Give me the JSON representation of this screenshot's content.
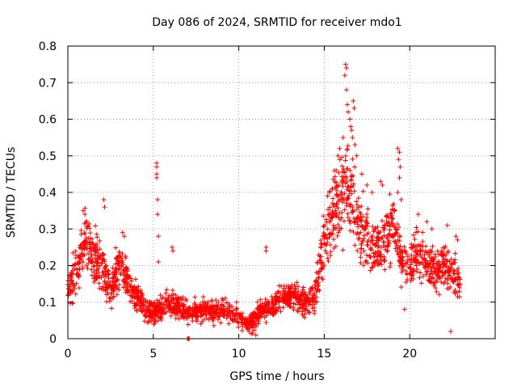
{
  "chart_data": {
    "type": "scatter",
    "title": "Day 086 of 2024, SRMTID for receiver mdo1",
    "xlabel": "GPS time / hours",
    "ylabel": "SRMTID / TECUs",
    "xlim": [
      0,
      25
    ],
    "ylim": [
      0,
      0.8
    ],
    "xticks": [
      0,
      5,
      10,
      15,
      20
    ],
    "xtick_labels": [
      "0",
      "5",
      "10",
      "15",
      "20"
    ],
    "yticks": [
      0,
      0.1,
      0.2,
      0.3,
      0.4,
      0.5,
      0.6,
      0.7,
      0.8
    ],
    "ytick_labels": [
      "0",
      "0.1",
      "0.2",
      "0.3",
      "0.4",
      "0.5",
      "0.6",
      "0.7",
      "0.8"
    ],
    "grid": true,
    "marker": "plus",
    "series_color": "#ff0000",
    "profile": {
      "x": [
        0,
        0.5,
        1,
        1.5,
        2,
        2.5,
        3,
        3.5,
        4,
        4.5,
        5,
        5.5,
        6,
        6.5,
        7,
        7.5,
        8,
        8.5,
        9,
        9.5,
        10,
        10.5,
        11,
        11.5,
        12,
        12.5,
        13,
        13.5,
        14,
        14.5,
        15,
        15.5,
        16,
        16.5,
        17,
        17.5,
        18,
        18.5,
        19,
        19.5,
        20,
        20.5,
        21,
        21.5,
        22,
        22.5,
        23
      ],
      "y": [
        0.14,
        0.17,
        0.28,
        0.22,
        0.2,
        0.13,
        0.2,
        0.16,
        0.12,
        0.08,
        0.07,
        0.08,
        0.1,
        0.09,
        0.07,
        0.07,
        0.08,
        0.07,
        0.08,
        0.07,
        0.06,
        0.04,
        0.06,
        0.08,
        0.09,
        0.11,
        0.12,
        0.11,
        0.1,
        0.12,
        0.26,
        0.33,
        0.4,
        0.43,
        0.3,
        0.27,
        0.25,
        0.24,
        0.33,
        0.22,
        0.2,
        0.24,
        0.2,
        0.19,
        0.2,
        0.18,
        0.15
      ],
      "spread": [
        0.05,
        0.06,
        0.07,
        0.07,
        0.07,
        0.05,
        0.06,
        0.05,
        0.04,
        0.03,
        0.03,
        0.03,
        0.04,
        0.03,
        0.03,
        0.03,
        0.03,
        0.03,
        0.03,
        0.03,
        0.03,
        0.02,
        0.03,
        0.03,
        0.03,
        0.04,
        0.04,
        0.04,
        0.04,
        0.05,
        0.08,
        0.1,
        0.12,
        0.12,
        0.09,
        0.08,
        0.07,
        0.08,
        0.09,
        0.06,
        0.06,
        0.07,
        0.06,
        0.06,
        0.06,
        0.06,
        0.05
      ]
    },
    "outliers": [
      {
        "x": 5.2,
        "y": 0.48
      },
      {
        "x": 5.2,
        "y": 0.47
      },
      {
        "x": 5.2,
        "y": 0.45
      },
      {
        "x": 5.2,
        "y": 0.44
      },
      {
        "x": 5.25,
        "y": 0.38
      },
      {
        "x": 5.25,
        "y": 0.34
      },
      {
        "x": 5.3,
        "y": 0.28
      },
      {
        "x": 5.3,
        "y": 0.21
      },
      {
        "x": 6.1,
        "y": 0.25
      },
      {
        "x": 6.15,
        "y": 0.24
      },
      {
        "x": 7.0,
        "y": 0.0
      },
      {
        "x": 7.05,
        "y": 0.0
      },
      {
        "x": 7.1,
        "y": 0.0
      },
      {
        "x": 0.9,
        "y": 0.35
      },
      {
        "x": 1.0,
        "y": 0.34
      },
      {
        "x": 2.1,
        "y": 0.38
      },
      {
        "x": 2.15,
        "y": 0.36
      },
      {
        "x": 3.2,
        "y": 0.29
      },
      {
        "x": 3.3,
        "y": 0.28
      },
      {
        "x": 11.6,
        "y": 0.25
      },
      {
        "x": 11.6,
        "y": 0.24
      },
      {
        "x": 16.25,
        "y": 0.75
      },
      {
        "x": 16.3,
        "y": 0.74
      },
      {
        "x": 16.2,
        "y": 0.72
      },
      {
        "x": 16.3,
        "y": 0.68
      },
      {
        "x": 16.35,
        "y": 0.64
      },
      {
        "x": 16.4,
        "y": 0.62
      },
      {
        "x": 16.5,
        "y": 0.6
      },
      {
        "x": 16.55,
        "y": 0.58
      },
      {
        "x": 16.6,
        "y": 0.57
      },
      {
        "x": 16.7,
        "y": 0.65
      },
      {
        "x": 16.75,
        "y": 0.63
      },
      {
        "x": 16.65,
        "y": 0.55
      },
      {
        "x": 16.8,
        "y": 0.53
      },
      {
        "x": 16.9,
        "y": 0.5
      },
      {
        "x": 16.1,
        "y": 0.55
      },
      {
        "x": 15.8,
        "y": 0.5
      },
      {
        "x": 15.9,
        "y": 0.52
      },
      {
        "x": 15.7,
        "y": 0.46
      },
      {
        "x": 15.3,
        "y": 0.4
      },
      {
        "x": 15.2,
        "y": 0.39
      },
      {
        "x": 17.2,
        "y": 0.45
      },
      {
        "x": 17.5,
        "y": 0.42
      },
      {
        "x": 17.8,
        "y": 0.4
      },
      {
        "x": 18.3,
        "y": 0.43
      },
      {
        "x": 18.4,
        "y": 0.42
      },
      {
        "x": 19.3,
        "y": 0.52
      },
      {
        "x": 19.4,
        "y": 0.51
      },
      {
        "x": 19.35,
        "y": 0.49
      },
      {
        "x": 19.45,
        "y": 0.47
      },
      {
        "x": 19.4,
        "y": 0.44
      },
      {
        "x": 19.3,
        "y": 0.4
      },
      {
        "x": 19.5,
        "y": 0.38
      },
      {
        "x": 20.5,
        "y": 0.34
      },
      {
        "x": 21.0,
        "y": 0.32
      },
      {
        "x": 21.3,
        "y": 0.3
      },
      {
        "x": 22.2,
        "y": 0.31
      },
      {
        "x": 22.7,
        "y": 0.28
      },
      {
        "x": 22.8,
        "y": 0.27
      },
      {
        "x": 20.1,
        "y": 0.25
      },
      {
        "x": 21.7,
        "y": 0.23
      },
      {
        "x": 22.4,
        "y": 0.02
      },
      {
        "x": 19.7,
        "y": 0.08
      },
      {
        "x": 11.0,
        "y": 0.01
      },
      {
        "x": 10.8,
        "y": 0.015
      },
      {
        "x": 10.6,
        "y": 0.02
      }
    ],
    "n_points": 2200,
    "seed": 86
  }
}
